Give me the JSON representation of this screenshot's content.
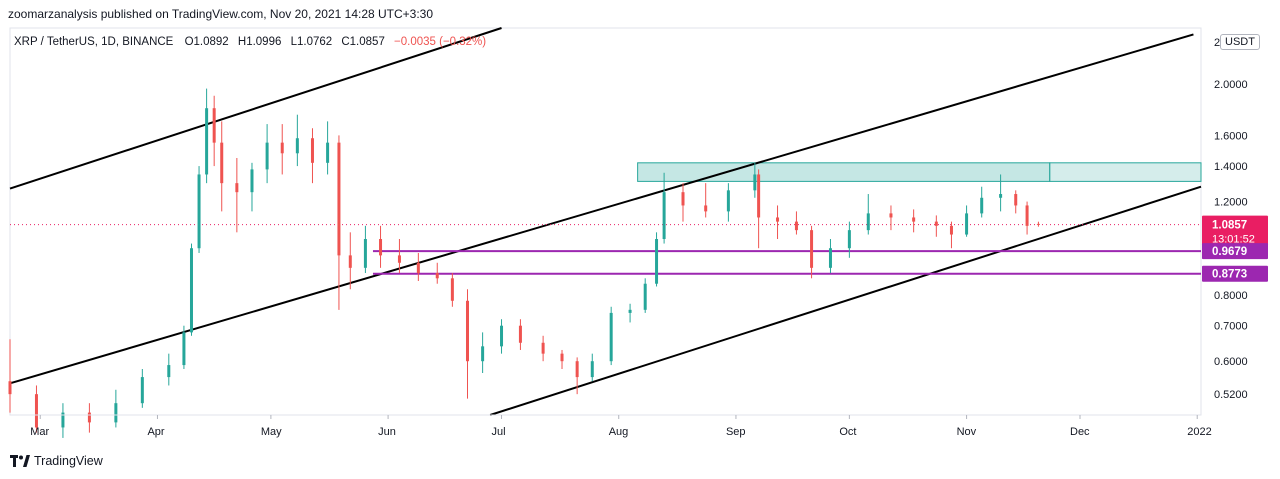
{
  "header": {
    "published": "zoomarzanalysis published on TradingView.com, Nov 20, 2021 14:28 UTC+3:30"
  },
  "legend": {
    "symbol": "XRP / TetherUS, 1D, BINANCE",
    "open": "O1.0892",
    "high": "H1.0996",
    "low": "L1.0762",
    "close": "C1.0857",
    "change": "−0.0035 (−0.32%)"
  },
  "currency_button": "USDT",
  "footer": {
    "brand": "TradingView"
  },
  "colors": {
    "up": "#26a69a",
    "down": "#ef5350",
    "zone_fill": "#b2dfdb",
    "zone_border": "#26a69a",
    "support": "#9c27b0",
    "price_tag": "#e91e63",
    "channel": "#000000"
  },
  "chart_data": {
    "type": "candlestick",
    "y_scale": "log",
    "ylim": [
      0.475,
      2.55
    ],
    "y_ticks": [
      {
        "value": 2.0,
        "label": "2.0000"
      },
      {
        "value": 1.6,
        "label": "1.6000"
      },
      {
        "value": 1.4,
        "label": "1.4000"
      },
      {
        "value": 1.2,
        "label": "1.2000"
      },
      {
        "value": 0.7,
        "label": "0.7000"
      },
      {
        "value": 0.6,
        "label": "0.6000"
      },
      {
        "value": 0.52,
        "label": "0.5200"
      }
    ],
    "partial_ticks": [
      {
        "value": 2.4,
        "label": "2"
      },
      {
        "value": 0.8,
        "label": "0.8000"
      }
    ],
    "x_ticks": [
      {
        "date": "2021-03-01",
        "label": "Mar"
      },
      {
        "date": "2021-04-01",
        "label": "Apr"
      },
      {
        "date": "2021-05-01",
        "label": "May"
      },
      {
        "date": "2021-06-01",
        "label": "Jun"
      },
      {
        "date": "2021-07-01",
        "label": "Jul"
      },
      {
        "date": "2021-08-01",
        "label": "Aug"
      },
      {
        "date": "2021-09-01",
        "label": "Sep"
      },
      {
        "date": "2021-10-01",
        "label": "Oct"
      },
      {
        "date": "2021-11-01",
        "label": "Nov"
      },
      {
        "date": "2021-12-01",
        "label": "Dec"
      },
      {
        "date": "2022-01-01",
        "label": "2022"
      }
    ],
    "x_range": [
      "2021-02-21",
      "2022-01-02"
    ],
    "current_price": {
      "value": 1.0857,
      "label": "1.0857",
      "countdown": "13:01:52"
    },
    "support_levels": [
      {
        "value": 0.9679,
        "label": "0.9679",
        "from": "2021-05-28"
      },
      {
        "value": 0.8773,
        "label": "0.8773",
        "from": "2021-05-28"
      }
    ],
    "resistance_zone": {
      "low": 1.31,
      "high": 1.42,
      "from": "2021-08-06",
      "split": "2021-11-23"
    },
    "channel_lines": [
      {
        "from": {
          "date": "2021-02-21",
          "value": 1.27
        },
        "to": {
          "date": "2021-07-01",
          "value": 2.55
        }
      },
      {
        "from": {
          "date": "2021-02-21",
          "value": 0.545
        },
        "to": {
          "date": "2021-12-31",
          "value": 2.48
        }
      },
      {
        "from": {
          "date": "2021-06-28",
          "value": 0.475
        },
        "to": {
          "date": "2022-01-02",
          "value": 1.28
        }
      }
    ],
    "series": [
      {
        "date": "2021-02-21",
        "open": 0.55,
        "high": 0.66,
        "low": 0.48,
        "close": 0.52
      },
      {
        "date": "2021-02-28",
        "open": 0.52,
        "high": 0.54,
        "low": 0.44,
        "close": 0.45
      },
      {
        "date": "2021-03-07",
        "open": 0.45,
        "high": 0.5,
        "low": 0.43,
        "close": 0.48
      },
      {
        "date": "2021-03-14",
        "open": 0.48,
        "high": 0.5,
        "low": 0.44,
        "close": 0.46
      },
      {
        "date": "2021-03-21",
        "open": 0.46,
        "high": 0.53,
        "low": 0.45,
        "close": 0.5
      },
      {
        "date": "2021-03-28",
        "open": 0.5,
        "high": 0.58,
        "low": 0.49,
        "close": 0.56
      },
      {
        "date": "2021-04-04",
        "open": 0.56,
        "high": 0.62,
        "low": 0.54,
        "close": 0.59
      },
      {
        "date": "2021-04-08",
        "open": 0.59,
        "high": 0.7,
        "low": 0.58,
        "close": 0.68
      },
      {
        "date": "2021-04-10",
        "open": 0.68,
        "high": 1.0,
        "low": 0.67,
        "close": 0.98
      },
      {
        "date": "2021-04-12",
        "open": 0.98,
        "high": 1.4,
        "low": 0.96,
        "close": 1.35
      },
      {
        "date": "2021-04-14",
        "open": 1.35,
        "high": 1.96,
        "low": 1.3,
        "close": 1.8
      },
      {
        "date": "2021-04-16",
        "open": 1.8,
        "high": 1.9,
        "low": 1.4,
        "close": 1.55
      },
      {
        "date": "2021-04-18",
        "open": 1.55,
        "high": 1.7,
        "low": 1.15,
        "close": 1.3
      },
      {
        "date": "2021-04-22",
        "open": 1.3,
        "high": 1.45,
        "low": 1.05,
        "close": 1.25
      },
      {
        "date": "2021-04-26",
        "open": 1.25,
        "high": 1.42,
        "low": 1.15,
        "close": 1.38
      },
      {
        "date": "2021-04-30",
        "open": 1.38,
        "high": 1.68,
        "low": 1.3,
        "close": 1.55
      },
      {
        "date": "2021-05-04",
        "open": 1.55,
        "high": 1.68,
        "low": 1.35,
        "close": 1.48
      },
      {
        "date": "2021-05-08",
        "open": 1.48,
        "high": 1.75,
        "low": 1.4,
        "close": 1.58
      },
      {
        "date": "2021-05-12",
        "open": 1.58,
        "high": 1.65,
        "low": 1.3,
        "close": 1.42
      },
      {
        "date": "2021-05-16",
        "open": 1.42,
        "high": 1.7,
        "low": 1.35,
        "close": 1.55
      },
      {
        "date": "2021-05-19",
        "open": 1.55,
        "high": 1.6,
        "low": 0.75,
        "close": 0.95
      },
      {
        "date": "2021-05-22",
        "open": 0.95,
        "high": 1.05,
        "low": 0.82,
        "close": 0.9
      },
      {
        "date": "2021-05-26",
        "open": 0.9,
        "high": 1.08,
        "low": 0.88,
        "close": 1.02
      },
      {
        "date": "2021-05-30",
        "open": 1.02,
        "high": 1.08,
        "low": 0.9,
        "close": 0.95
      },
      {
        "date": "2021-06-04",
        "open": 0.95,
        "high": 1.02,
        "low": 0.88,
        "close": 0.92
      },
      {
        "date": "2021-06-09",
        "open": 0.92,
        "high": 0.96,
        "low": 0.85,
        "close": 0.88
      },
      {
        "date": "2021-06-14",
        "open": 0.88,
        "high": 0.92,
        "low": 0.84,
        "close": 0.86
      },
      {
        "date": "2021-06-18",
        "open": 0.86,
        "high": 0.88,
        "low": 0.76,
        "close": 0.78
      },
      {
        "date": "2021-06-22",
        "open": 0.78,
        "high": 0.82,
        "low": 0.51,
        "close": 0.6
      },
      {
        "date": "2021-06-26",
        "open": 0.6,
        "high": 0.68,
        "low": 0.57,
        "close": 0.64
      },
      {
        "date": "2021-07-01",
        "open": 0.64,
        "high": 0.72,
        "low": 0.62,
        "close": 0.7
      },
      {
        "date": "2021-07-06",
        "open": 0.7,
        "high": 0.72,
        "low": 0.63,
        "close": 0.65
      },
      {
        "date": "2021-07-12",
        "open": 0.65,
        "high": 0.67,
        "low": 0.6,
        "close": 0.62
      },
      {
        "date": "2021-07-17",
        "open": 0.62,
        "high": 0.63,
        "low": 0.58,
        "close": 0.6
      },
      {
        "date": "2021-07-21",
        "open": 0.6,
        "high": 0.61,
        "low": 0.52,
        "close": 0.56
      },
      {
        "date": "2021-07-25",
        "open": 0.56,
        "high": 0.62,
        "low": 0.55,
        "close": 0.6
      },
      {
        "date": "2021-07-30",
        "open": 0.6,
        "high": 0.76,
        "low": 0.59,
        "close": 0.74
      },
      {
        "date": "2021-08-04",
        "open": 0.74,
        "high": 0.77,
        "low": 0.71,
        "close": 0.75
      },
      {
        "date": "2021-08-08",
        "open": 0.75,
        "high": 0.86,
        "low": 0.74,
        "close": 0.84
      },
      {
        "date": "2021-08-11",
        "open": 0.84,
        "high": 1.05,
        "low": 0.83,
        "close": 1.02
      },
      {
        "date": "2021-08-13",
        "open": 1.02,
        "high": 1.36,
        "low": 1.0,
        "close": 1.25
      },
      {
        "date": "2021-08-18",
        "open": 1.25,
        "high": 1.3,
        "low": 1.1,
        "close": 1.18
      },
      {
        "date": "2021-08-24",
        "open": 1.18,
        "high": 1.3,
        "low": 1.12,
        "close": 1.15
      },
      {
        "date": "2021-08-30",
        "open": 1.15,
        "high": 1.3,
        "low": 1.1,
        "close": 1.26
      },
      {
        "date": "2021-09-06",
        "open": 1.26,
        "high": 1.42,
        "low": 1.22,
        "close": 1.35
      },
      {
        "date": "2021-09-07",
        "open": 1.35,
        "high": 1.38,
        "low": 0.98,
        "close": 1.12
      },
      {
        "date": "2021-09-12",
        "open": 1.12,
        "high": 1.18,
        "low": 1.02,
        "close": 1.1
      },
      {
        "date": "2021-09-17",
        "open": 1.1,
        "high": 1.15,
        "low": 1.04,
        "close": 1.06
      },
      {
        "date": "2021-09-21",
        "open": 1.06,
        "high": 1.08,
        "low": 0.86,
        "close": 0.9
      },
      {
        "date": "2021-09-26",
        "open": 0.9,
        "high": 1.02,
        "low": 0.88,
        "close": 0.98
      },
      {
        "date": "2021-10-01",
        "open": 0.98,
        "high": 1.1,
        "low": 0.94,
        "close": 1.06
      },
      {
        "date": "2021-10-06",
        "open": 1.06,
        "high": 1.24,
        "low": 1.04,
        "close": 1.14
      },
      {
        "date": "2021-10-12",
        "open": 1.14,
        "high": 1.18,
        "low": 1.06,
        "close": 1.12
      },
      {
        "date": "2021-10-18",
        "open": 1.12,
        "high": 1.16,
        "low": 1.05,
        "close": 1.1
      },
      {
        "date": "2021-10-24",
        "open": 1.1,
        "high": 1.13,
        "low": 1.03,
        "close": 1.08
      },
      {
        "date": "2021-10-28",
        "open": 1.08,
        "high": 1.1,
        "low": 0.98,
        "close": 1.04
      },
      {
        "date": "2021-11-01",
        "open": 1.04,
        "high": 1.18,
        "low": 1.03,
        "close": 1.14
      },
      {
        "date": "2021-11-05",
        "open": 1.14,
        "high": 1.28,
        "low": 1.12,
        "close": 1.22
      },
      {
        "date": "2021-11-10",
        "open": 1.22,
        "high": 1.35,
        "low": 1.15,
        "close": 1.24
      },
      {
        "date": "2021-11-14",
        "open": 1.24,
        "high": 1.26,
        "low": 1.14,
        "close": 1.18
      },
      {
        "date": "2021-11-17",
        "open": 1.18,
        "high": 1.2,
        "low": 1.04,
        "close": 1.08
      },
      {
        "date": "2021-11-20",
        "open": 1.0892,
        "high": 1.0996,
        "low": 1.0762,
        "close": 1.0857
      }
    ]
  }
}
